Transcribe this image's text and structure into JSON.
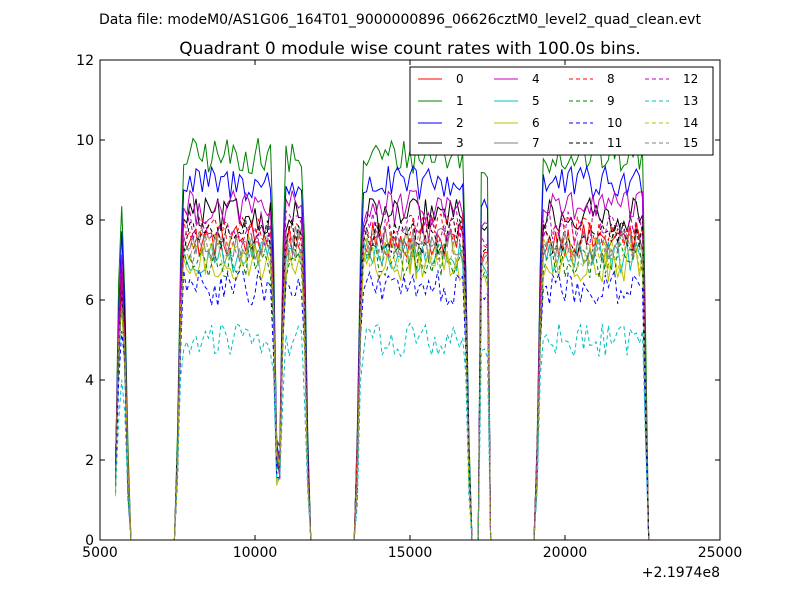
{
  "figure": {
    "suptitle": "Data file: modeM0/AS1G06_164T01_9000000896_06626cztM0_level2_quad_clean.evt"
  },
  "chart_data": {
    "type": "line",
    "title": "Quadrant 0 module wise count rates with 100.0s bins.",
    "xlabel": "",
    "ylabel": "",
    "xlim": [
      5000,
      25000
    ],
    "ylim": [
      0,
      12
    ],
    "x_offset_label": "+2.1974e8",
    "xticks": [
      5000,
      10000,
      15000,
      20000,
      25000
    ],
    "xtick_labels": [
      "5000",
      "10000",
      "15000",
      "20000",
      "25000"
    ],
    "yticks": [
      0,
      2,
      4,
      6,
      8,
      10,
      12
    ],
    "ytick_labels": [
      "0",
      "2",
      "4",
      "6",
      "8",
      "10",
      "12"
    ],
    "grid": false,
    "legend_position": "top-right",
    "legend_columns": 4,
    "series": [
      {
        "name": "0",
        "color": "#ff0000",
        "style": "solid",
        "level": 7.5
      },
      {
        "name": "1",
        "color": "#008000",
        "style": "solid",
        "level": 9.6
      },
      {
        "name": "2",
        "color": "#0000ff",
        "style": "solid",
        "level": 8.9
      },
      {
        "name": "3",
        "color": "#000000",
        "style": "solid",
        "level": 8.1
      },
      {
        "name": "4",
        "color": "#bf00bf",
        "style": "solid",
        "level": 8.3
      },
      {
        "name": "5",
        "color": "#00bfbf",
        "style": "solid",
        "level": 7.1
      },
      {
        "name": "6",
        "color": "#bfbf00",
        "style": "solid",
        "level": 6.9
      },
      {
        "name": "7",
        "color": "#808080",
        "style": "solid",
        "level": 7.4
      },
      {
        "name": "8",
        "color": "#ff0000",
        "style": "dashed",
        "level": 7.7
      },
      {
        "name": "9",
        "color": "#008000",
        "style": "dashed",
        "level": 7.0
      },
      {
        "name": "10",
        "color": "#0000ff",
        "style": "dashed",
        "level": 6.3
      },
      {
        "name": "11",
        "color": "#000000",
        "style": "dashed",
        "level": 7.6
      },
      {
        "name": "12",
        "color": "#bf00bf",
        "style": "dashed",
        "level": 7.8
      },
      {
        "name": "13",
        "color": "#00bfbf",
        "style": "dashed",
        "level": 5.0
      },
      {
        "name": "14",
        "color": "#bfbf00",
        "style": "dashed",
        "level": 7.2
      },
      {
        "name": "15",
        "color": "#808080",
        "style": "dashed",
        "level": 7.3
      }
    ],
    "active_segments": [
      {
        "start": 5500,
        "end": 5900,
        "initial_level_scale": 0.85
      },
      {
        "start": 7500,
        "end": 10700
      },
      {
        "start": 10800,
        "end": 11700
      },
      {
        "start": 13300,
        "end": 16900
      },
      {
        "start": 17300,
        "end": 17500
      },
      {
        "start": 19100,
        "end": 22650
      }
    ]
  }
}
